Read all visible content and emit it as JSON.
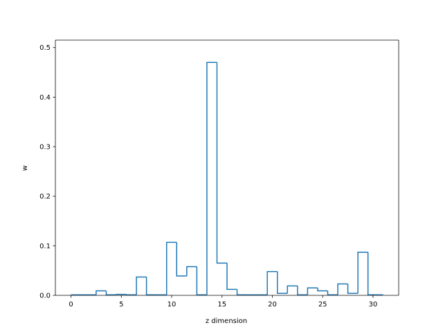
{
  "chart_data": {
    "type": "line",
    "drawstyle": "steps-mid",
    "title": "",
    "xlabel": "z dimension",
    "ylabel": "w",
    "xlim": [
      -1.55,
      32.55
    ],
    "ylim": [
      0,
      0.515
    ],
    "grid": false,
    "x_ticks": [
      0,
      5,
      10,
      15,
      20,
      25,
      30
    ],
    "y_ticks": [
      0.0,
      0.1,
      0.2,
      0.3,
      0.4,
      0.5
    ],
    "x_tick_labels": [
      "0",
      "5",
      "10",
      "15",
      "20",
      "25",
      "30"
    ],
    "y_tick_labels": [
      "0.0",
      "0.1",
      "0.2",
      "0.3",
      "0.4",
      "0.5"
    ],
    "series": [
      {
        "color": "#1f77b4",
        "x": [
          0,
          1,
          2,
          3,
          4,
          5,
          6,
          7,
          8,
          9,
          10,
          11,
          12,
          13,
          14,
          15,
          16,
          17,
          18,
          19,
          20,
          21,
          22,
          23,
          24,
          25,
          26,
          27,
          28,
          29,
          30,
          31
        ],
        "values": [
          0.001,
          0.001,
          0.001,
          0.009,
          0.001,
          0.002,
          0.001,
          0.037,
          0.001,
          0.001,
          0.107,
          0.039,
          0.058,
          0.001,
          0.47,
          0.065,
          0.012,
          0.001,
          0.001,
          0.001,
          0.048,
          0.004,
          0.019,
          0.001,
          0.015,
          0.009,
          0.001,
          0.023,
          0.004,
          0.087,
          0.001,
          0.001
        ]
      }
    ]
  }
}
